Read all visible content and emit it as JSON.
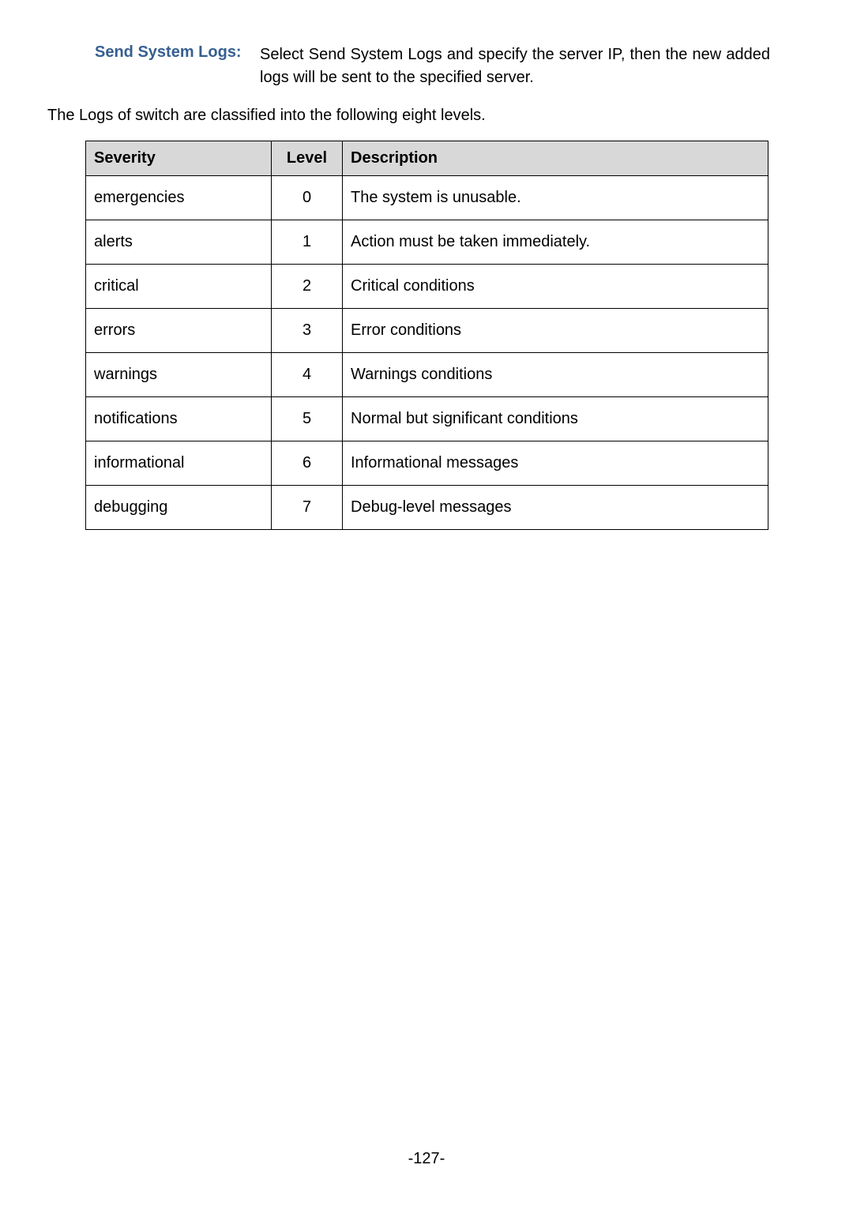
{
  "definition": {
    "label": "Send System Logs:",
    "text": "Select Send System Logs and specify the server IP, then the new added logs will be sent to the specified server."
  },
  "intro": "The Logs of switch are classified into the following eight levels.",
  "table": {
    "columns": [
      "Severity",
      "Level",
      "Description"
    ],
    "rows": [
      {
        "severity": "emergencies",
        "level": "0",
        "description": "The system is unusable."
      },
      {
        "severity": "alerts",
        "level": "1",
        "description": "Action must be taken immediately."
      },
      {
        "severity": "critical",
        "level": "2",
        "description": "Critical conditions"
      },
      {
        "severity": "errors",
        "level": "3",
        "description": "Error conditions"
      },
      {
        "severity": "warnings",
        "level": "4",
        "description": "Warnings conditions"
      },
      {
        "severity": "notifications",
        "level": "5",
        "description": "Normal but significant conditions"
      },
      {
        "severity": "informational",
        "level": "6",
        "description": "Informational messages"
      },
      {
        "severity": "debugging",
        "level": "7",
        "description": "Debug-level messages"
      }
    ]
  },
  "page_number": "-127-"
}
